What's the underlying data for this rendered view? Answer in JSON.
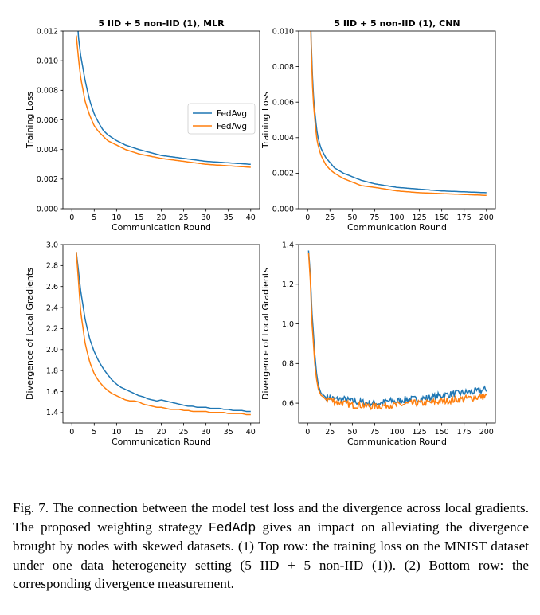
{
  "caption": {
    "prefix": "Fig. 7.  The connection between the model test loss and the divergence across local gradients. The proposed weighting strategy ",
    "method": "FedAdp",
    "suffix": " gives an impact on alleviating the divergence brought by nodes with skewed datasets. (1) Top row: the training loss on the MNIST dataset under one data heterogeneity setting (5 IID + 5 non-IID (1)). (2) Bottom row: the corresponding divergence measurement."
  },
  "colors": {
    "blue": "#1f77b4",
    "orange": "#ff7f0e"
  },
  "chart_data": [
    {
      "type": "line",
      "title": "5 IID + 5 non-IID (1), MLR",
      "xlabel": "Communication Round",
      "ylabel": "Training Loss",
      "xlim": [
        -2,
        42
      ],
      "ylim": [
        0,
        0.012
      ],
      "xticks": [
        0,
        5,
        10,
        15,
        20,
        25,
        30,
        35,
        40
      ],
      "xtick_labels": [
        "0",
        "5",
        "10",
        "15",
        "20",
        "25",
        "30",
        "35",
        "40"
      ],
      "yticks": [
        0,
        0.002,
        0.004,
        0.006,
        0.008,
        0.01,
        0.012
      ],
      "ytick_labels": [
        "0.000",
        "0.002",
        "0.004",
        "0.006",
        "0.008",
        "0.010",
        "0.012"
      ],
      "legend": {
        "position": "center-right",
        "entries": [
          "FedAvg",
          "FedAvg"
        ]
      },
      "noise": false,
      "series": [
        {
          "name": "FedAvg",
          "color": "blue",
          "x": [
            1,
            1.5,
            2,
            3,
            4,
            5,
            6,
            7,
            8,
            10,
            12,
            15,
            20,
            25,
            30,
            35,
            40
          ],
          "y": [
            0.0138,
            0.0115,
            0.0103,
            0.0086,
            0.0073,
            0.0064,
            0.0058,
            0.0053,
            0.005,
            0.0046,
            0.0043,
            0.004,
            0.0036,
            0.0034,
            0.0032,
            0.0031,
            0.003
          ]
        },
        {
          "name": "FedAvg",
          "color": "orange",
          "x": [
            1,
            1.5,
            2,
            3,
            4,
            5,
            6,
            7,
            8,
            10,
            12,
            15,
            20,
            25,
            30,
            35,
            40
          ],
          "y": [
            0.0117,
            0.0101,
            0.0088,
            0.0072,
            0.0063,
            0.0056,
            0.0052,
            0.0049,
            0.0046,
            0.0043,
            0.004,
            0.0037,
            0.0034,
            0.0032,
            0.003,
            0.0029,
            0.0028
          ]
        }
      ]
    },
    {
      "type": "line",
      "title": "5 IID + 5 non-IID (1), CNN",
      "xlabel": "Communication Round",
      "ylabel": "Training Loss",
      "xlim": [
        -10,
        210
      ],
      "ylim": [
        0,
        0.01
      ],
      "xticks": [
        0,
        25,
        50,
        75,
        100,
        125,
        150,
        175,
        200
      ],
      "xtick_labels": [
        "0",
        "25",
        "50",
        "75",
        "100",
        "125",
        "150",
        "175",
        "200"
      ],
      "yticks": [
        0,
        0.002,
        0.004,
        0.006,
        0.008,
        0.01
      ],
      "ytick_labels": [
        "0.000",
        "0.002",
        "0.004",
        "0.006",
        "0.008",
        "0.010"
      ],
      "noise": false,
      "series": [
        {
          "name": "",
          "color": "blue",
          "x": [
            3,
            5,
            7,
            10,
            12,
            15,
            20,
            25,
            30,
            40,
            50,
            60,
            75,
            100,
            125,
            150,
            175,
            200
          ],
          "y": [
            0.0112,
            0.0078,
            0.006,
            0.0045,
            0.0039,
            0.0034,
            0.0029,
            0.0026,
            0.0023,
            0.002,
            0.0018,
            0.0016,
            0.0014,
            0.0012,
            0.0011,
            0.001,
            0.00095,
            0.0009
          ]
        },
        {
          "name": "",
          "color": "orange",
          "x": [
            3,
            5,
            7,
            10,
            12,
            15,
            20,
            25,
            30,
            40,
            50,
            60,
            75,
            100,
            125,
            150,
            175,
            200
          ],
          "y": [
            0.011,
            0.0073,
            0.0056,
            0.004,
            0.0035,
            0.003,
            0.0025,
            0.0022,
            0.002,
            0.0017,
            0.0015,
            0.0013,
            0.0012,
            0.001,
            0.0009,
            0.00085,
            0.0008,
            0.00075
          ]
        }
      ]
    },
    {
      "type": "line",
      "title": "",
      "xlabel": "Communication Round",
      "ylabel": "Divergence of Local Gradients",
      "xlim": [
        -2,
        42
      ],
      "ylim": [
        1.3,
        3.0
      ],
      "xticks": [
        0,
        5,
        10,
        15,
        20,
        25,
        30,
        35,
        40
      ],
      "xtick_labels": [
        "0",
        "5",
        "10",
        "15",
        "20",
        "25",
        "30",
        "35",
        "40"
      ],
      "yticks": [
        1.4,
        1.6,
        1.8,
        2.0,
        2.2,
        2.4,
        2.6,
        2.8,
        3.0
      ],
      "ytick_labels": [
        "1.4",
        "1.6",
        "1.8",
        "2.0",
        "2.2",
        "2.4",
        "2.6",
        "2.8",
        "3.0"
      ],
      "noise": false,
      "series": [
        {
          "name": "",
          "color": "blue",
          "x": [
            1,
            2,
            3,
            4,
            5,
            6,
            7,
            8,
            9,
            10,
            11,
            12,
            13,
            14,
            15,
            16,
            17,
            18,
            19,
            20,
            21,
            22,
            23,
            24,
            25,
            26,
            27,
            28,
            29,
            30,
            31,
            32,
            33,
            34,
            35,
            36,
            37,
            38,
            39,
            40
          ],
          "y": [
            2.93,
            2.55,
            2.28,
            2.1,
            1.98,
            1.89,
            1.82,
            1.76,
            1.71,
            1.67,
            1.64,
            1.62,
            1.6,
            1.58,
            1.56,
            1.55,
            1.53,
            1.52,
            1.51,
            1.52,
            1.51,
            1.5,
            1.49,
            1.48,
            1.47,
            1.46,
            1.46,
            1.45,
            1.45,
            1.45,
            1.44,
            1.44,
            1.44,
            1.43,
            1.43,
            1.42,
            1.42,
            1.42,
            1.41,
            1.41
          ]
        },
        {
          "name": "",
          "color": "orange",
          "x": [
            1,
            2,
            3,
            4,
            5,
            6,
            7,
            8,
            9,
            10,
            11,
            12,
            13,
            14,
            15,
            16,
            17,
            18,
            19,
            20,
            21,
            22,
            23,
            24,
            25,
            26,
            27,
            28,
            29,
            30,
            31,
            32,
            33,
            34,
            35,
            36,
            37,
            38,
            39,
            40
          ],
          "y": [
            2.93,
            2.35,
            2.05,
            1.88,
            1.77,
            1.7,
            1.65,
            1.61,
            1.58,
            1.56,
            1.54,
            1.52,
            1.51,
            1.51,
            1.5,
            1.48,
            1.47,
            1.46,
            1.45,
            1.45,
            1.44,
            1.43,
            1.43,
            1.43,
            1.42,
            1.42,
            1.41,
            1.41,
            1.41,
            1.41,
            1.4,
            1.4,
            1.4,
            1.4,
            1.39,
            1.39,
            1.39,
            1.39,
            1.38,
            1.38
          ]
        }
      ]
    },
    {
      "type": "line",
      "title": "",
      "xlabel": "Communication Round",
      "ylabel": "Divergence of Local Gradients",
      "xlim": [
        -10,
        210
      ],
      "ylim": [
        0.5,
        1.4
      ],
      "xticks": [
        0,
        25,
        50,
        75,
        100,
        125,
        150,
        175,
        200
      ],
      "xtick_labels": [
        "0",
        "25",
        "50",
        "75",
        "100",
        "125",
        "150",
        "175",
        "200"
      ],
      "yticks": [
        0.6,
        0.8,
        1.0,
        1.2,
        1.4
      ],
      "ytick_labels": [
        "0.6",
        "0.8",
        "1.0",
        "1.2",
        "1.4"
      ],
      "noise": true,
      "series": [
        {
          "name": "",
          "color": "blue",
          "x": [
            1,
            3,
            5,
            8,
            10,
            12,
            15,
            18,
            20,
            25,
            30,
            40,
            50,
            60,
            70,
            80,
            90,
            100,
            110,
            120,
            130,
            140,
            150,
            160,
            170,
            180,
            190,
            200
          ],
          "y": [
            1.37,
            1.25,
            1.05,
            0.85,
            0.75,
            0.69,
            0.65,
            0.64,
            0.63,
            0.63,
            0.62,
            0.62,
            0.61,
            0.605,
            0.6,
            0.6,
            0.61,
            0.61,
            0.62,
            0.62,
            0.625,
            0.63,
            0.64,
            0.645,
            0.65,
            0.655,
            0.66,
            0.67
          ]
        },
        {
          "name": "",
          "color": "orange",
          "x": [
            1,
            3,
            5,
            8,
            10,
            12,
            15,
            18,
            20,
            25,
            30,
            40,
            50,
            60,
            70,
            80,
            90,
            100,
            110,
            120,
            130,
            140,
            150,
            160,
            170,
            180,
            190,
            200
          ],
          "y": [
            1.36,
            1.22,
            1.0,
            0.8,
            0.72,
            0.67,
            0.64,
            0.63,
            0.62,
            0.62,
            0.61,
            0.6,
            0.59,
            0.59,
            0.585,
            0.585,
            0.59,
            0.59,
            0.595,
            0.6,
            0.6,
            0.605,
            0.61,
            0.615,
            0.62,
            0.625,
            0.63,
            0.635
          ]
        }
      ]
    }
  ]
}
